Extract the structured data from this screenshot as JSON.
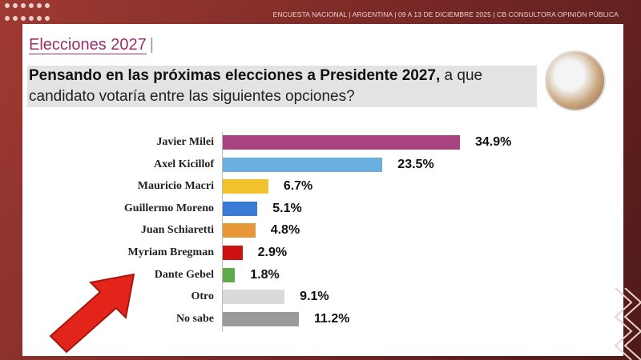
{
  "header": "ENCUESTA NACIONAL  |  ARGENTINA  | 09 A 13 DE DICIEMBRE 2025 | CB CONSULTORA OPINIÓN PÚBLICA",
  "section_title": "Elecciones 2027",
  "question_bold": "Pensando en las próximas elecciones a Presidente 2027,",
  "question_rest": " a que candidato votaría entre las siguientes opciones?",
  "chart_data": {
    "type": "bar",
    "orientation": "horizontal",
    "categories": [
      "Javier Milei",
      "Axel Kicillof",
      "Mauricio Macri",
      "Guillermo Moreno",
      "Juan Schiaretti",
      "Myriam Bregman",
      "Dante Gebel",
      "Otro",
      "No sabe"
    ],
    "values": [
      34.9,
      23.5,
      6.7,
      5.1,
      4.8,
      2.9,
      1.8,
      9.1,
      11.2
    ],
    "labels": [
      "34.9%",
      "23.5%",
      "6.7%",
      "5.1%",
      "4.8%",
      "2.9%",
      "1.8%",
      "9.1%",
      "11.2%"
    ],
    "colors": [
      "#a8437f",
      "#6aaee0",
      "#f2c12e",
      "#3a7bd5",
      "#e8963a",
      "#cc1111",
      "#5faa4a",
      "#d9d9d9",
      "#9a9a9a"
    ],
    "xlim": [
      0,
      40
    ],
    "grid": false
  },
  "annotation": {
    "arrow_color": "#e3241b",
    "points_to": "Dante Gebel"
  }
}
